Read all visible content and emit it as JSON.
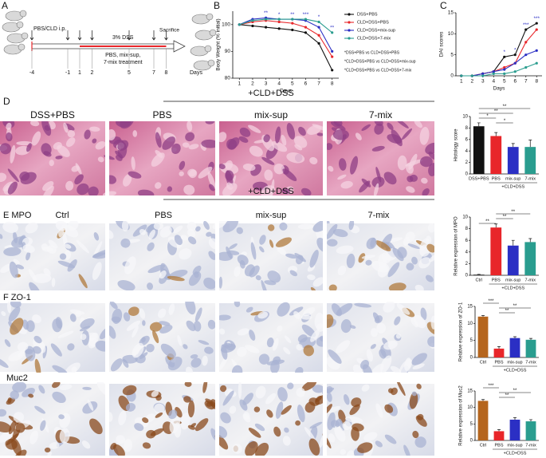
{
  "panels": {
    "A": {
      "letter": "A",
      "injection": "PBS/CLD i.p.",
      "dss": "3% DSS",
      "treatment_line1": "PBS, mix-sup,",
      "treatment_line2": "7-mix treatment",
      "endpoint": "Sacrifice",
      "days": [
        -4,
        -1,
        1,
        2,
        5,
        7,
        8
      ],
      "days_label": "Days"
    },
    "B": {
      "letter": "B"
    },
    "C": {
      "letter": "C"
    },
    "D": {
      "letter": "D",
      "images": [
        "DSS+PBS",
        "PBS",
        "mix-sup",
        "7-mix"
      ],
      "group": "+CLD+DSS"
    },
    "E": {
      "letter": "E MPO",
      "images": [
        "Ctrl",
        "PBS",
        "mix-sup",
        "7-mix"
      ],
      "group": "+CLD+DSS"
    },
    "F": {
      "letter": "F ZO-1"
    },
    "Muc2": {
      "letter": "Muc2"
    }
  },
  "chart_data": [
    {
      "type": "line",
      "y_label": "Body Weight (% initial)",
      "x_label": "Days",
      "x": [
        1,
        2,
        3,
        4,
        5,
        6,
        7,
        8
      ],
      "xlim": [
        0.5,
        8.5
      ],
      "xticks": [
        1,
        2,
        3,
        4,
        5,
        6,
        7,
        8
      ],
      "ylim": [
        80,
        105
      ],
      "yticks": [
        80,
        90,
        100
      ],
      "series": [
        {
          "name": "DSS+PBS",
          "color": "#111111",
          "values": [
            100,
            99.5,
            99,
            98.5,
            98,
            97,
            93,
            83
          ]
        },
        {
          "name": "CLD+DSS+PBS",
          "color": "#e8262a",
          "values": [
            100,
            101,
            101.5,
            101,
            100.5,
            99,
            96,
            88
          ]
        },
        {
          "name": "CLD+DSS+mix-sup",
          "color": "#2b2fc4",
          "values": [
            100,
            102,
            102.5,
            102,
            102,
            101.5,
            99,
            90
          ]
        },
        {
          "name": "CLD+DSS+7-mix",
          "color": "#2a9d8f",
          "values": [
            100,
            101.5,
            102,
            102,
            102,
            102,
            101,
            97
          ]
        }
      ],
      "annotations": [
        {
          "x": 3,
          "text": "**"
        },
        {
          "x": 4,
          "text": "*"
        },
        {
          "x": 5,
          "text": "**"
        },
        {
          "x": 6,
          "text": "***"
        },
        {
          "x": 7,
          "text": "*"
        },
        {
          "x": 8,
          "text": "**"
        }
      ],
      "footnotes": [
        "*DSS+PBS vs CLD+DSS+PBS",
        "*CLD+DSS+PBS vs CLD+DSS+mix-sup",
        "*CLD+DSS+PBS vs CLD+DSS+7-mix"
      ]
    },
    {
      "type": "line",
      "y_label": "DAI scores",
      "x_label": "Days",
      "x": [
        1,
        2,
        3,
        4,
        5,
        6,
        7,
        8
      ],
      "xlim": [
        0.5,
        8.5
      ],
      "xticks": [
        1,
        2,
        3,
        4,
        5,
        6,
        7,
        8
      ],
      "ylim": [
        0,
        15
      ],
      "yticks": [
        0,
        5,
        10,
        15
      ],
      "series": [
        {
          "color": "#111111",
          "values": [
            0,
            0,
            0.5,
            1,
            4.5,
            5,
            11,
            12.5
          ]
        },
        {
          "color": "#e8262a",
          "values": [
            0,
            0,
            0.5,
            1,
            2,
            3,
            8,
            11
          ]
        },
        {
          "color": "#2b2fc4",
          "values": [
            0,
            0,
            0.5,
            1,
            1.5,
            3,
            5,
            6
          ]
        },
        {
          "color": "#2a9d8f",
          "values": [
            0,
            0,
            0,
            0.5,
            0.5,
            1,
            2,
            3
          ]
        }
      ],
      "annotations": [
        {
          "x": 5,
          "text": "*"
        },
        {
          "x": 6,
          "text": "*"
        },
        {
          "x": 7,
          "text": "***"
        },
        {
          "x": 8,
          "text": "***"
        }
      ]
    },
    {
      "type": "bar",
      "y_label": "Histology score",
      "categories": [
        "DSS+PBS",
        "PBS",
        "mix-sup",
        "7-mix"
      ],
      "values": [
        8.3,
        6.6,
        4.7,
        4.7
      ],
      "errors": [
        0.6,
        0.6,
        0.6,
        1.2
      ],
      "colors": [
        "#111111",
        "#e8262a",
        "#2b2fc4",
        "#2a9d8f"
      ],
      "ylim": [
        0,
        10
      ],
      "yticks": [
        0,
        2,
        4,
        6,
        8,
        10
      ],
      "group_label": "+CLD+DSS",
      "significance": [
        {
          "between": [
            "PBS",
            "mix-sup"
          ],
          "text": "*"
        },
        {
          "between": [
            "DSS+PBS",
            "PBS"
          ],
          "text": "*"
        },
        {
          "between": [
            "DSS+PBS",
            "mix-sup"
          ],
          "text": "**"
        },
        {
          "between": [
            "DSS+PBS",
            "7-mix"
          ],
          "text": "**"
        }
      ]
    },
    {
      "type": "bar",
      "y_label": "Relative expression of MPO",
      "categories": [
        "Ctrl",
        "PBS",
        "mix-sup",
        "7-mix"
      ],
      "values": [
        0.1,
        8.2,
        5.1,
        5.7
      ],
      "errors": [
        0.05,
        0.6,
        0.9,
        0.6
      ],
      "colors": [
        "#111111",
        "#e8262a",
        "#2b2fc4",
        "#2a9d8f"
      ],
      "ylim": [
        0,
        10
      ],
      "yticks": [
        0,
        2,
        4,
        6,
        8,
        10
      ],
      "group_label": "+CLD+DSS",
      "significance": [
        {
          "between": [
            "Ctrl",
            "PBS"
          ],
          "text": "**"
        },
        {
          "between": [
            "PBS",
            "mix-sup"
          ],
          "text": "**"
        },
        {
          "between": [
            "PBS",
            "7-mix"
          ],
          "text": "**"
        }
      ]
    },
    {
      "type": "bar",
      "y_label": "Relative expression of ZO-1",
      "categories": [
        "Ctrl",
        "PBS",
        "mix-sup",
        "7-mix"
      ],
      "values": [
        12,
        2.6,
        5.7,
        5.2
      ],
      "errors": [
        0.3,
        0.6,
        0.4,
        0.4
      ],
      "colors": [
        "#b5651d",
        "#e8262a",
        "#2b2fc4",
        "#2a9d8f"
      ],
      "ylim": [
        0,
        15
      ],
      "yticks": [
        0,
        5,
        10,
        15
      ],
      "group_label": "+CLD+DSS",
      "significance": [
        {
          "between": [
            "PBS",
            "mix-sup"
          ],
          "text": "**"
        },
        {
          "between": [
            "PBS",
            "7-mix"
          ],
          "text": "**"
        },
        {
          "between": [
            "Ctrl",
            "PBS"
          ],
          "text": "***"
        }
      ]
    },
    {
      "type": "bar",
      "y_label": "Relative expression of Muc2",
      "categories": [
        "Ctrl",
        "PBS",
        "mix-sup",
        "7-mix"
      ],
      "values": [
        12,
        2.8,
        6.3,
        5.8
      ],
      "errors": [
        0.4,
        0.5,
        0.6,
        0.5
      ],
      "colors": [
        "#b5651d",
        "#e8262a",
        "#2b2fc4",
        "#2a9d8f"
      ],
      "ylim": [
        0,
        15
      ],
      "yticks": [
        0,
        5,
        10,
        15
      ],
      "group_label": "+CLD+DSS",
      "significance": [
        {
          "between": [
            "PBS",
            "mix-sup"
          ],
          "text": "**"
        },
        {
          "between": [
            "PBS",
            "7-mix"
          ],
          "text": "**"
        },
        {
          "between": [
            "Ctrl",
            "PBS"
          ],
          "text": "***"
        }
      ]
    }
  ]
}
